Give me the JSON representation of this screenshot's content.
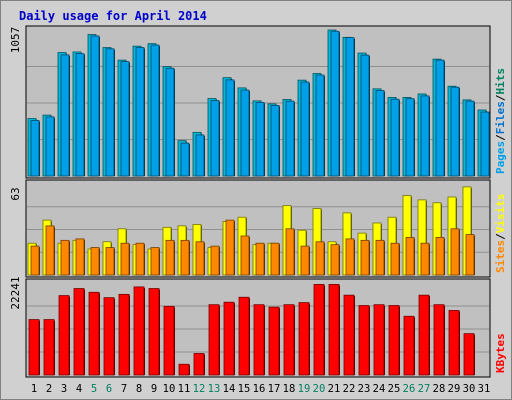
{
  "chart_data": {
    "type": "bar",
    "title": "Daily usage for April 2014",
    "categories": [
      "1",
      "2",
      "3",
      "4",
      "5",
      "6",
      "7",
      "8",
      "9",
      "10",
      "11",
      "12",
      "13",
      "14",
      "15",
      "16",
      "17",
      "18",
      "19",
      "20",
      "21",
      "22",
      "23",
      "24",
      "25",
      "26",
      "27",
      "28",
      "29",
      "30",
      "31"
    ],
    "weekend_days": [
      "5",
      "6",
      "12",
      "13",
      "19",
      "20",
      "26",
      "27"
    ],
    "colors": {
      "hits": "#00b8d8",
      "files": "#0070cc",
      "pages": "#00a0e8",
      "visits": "#ffff00",
      "sites": "#ff8800",
      "kbytes": "#ff0000",
      "weekday_label": "#000000",
      "weekend_label": "#008060",
      "plot_bg": "#c0c0c0",
      "frame_bg": "#d0d0d0"
    },
    "panels": [
      {
        "name": "pages_files_hits",
        "ymax_label": "1057",
        "ylim": [
          0,
          1057
        ],
        "legend": [
          {
            "text": "Pages",
            "color": "#00a0e8"
          },
          {
            "text": "/",
            "color": "#000000"
          },
          {
            "text": "Files",
            "color": "#0070cc"
          },
          {
            "text": "/",
            "color": "#000000"
          },
          {
            "text": "Hits",
            "color": "#008060"
          }
        ],
        "series": [
          {
            "name": "Hits",
            "values": [
              416,
              441,
              894,
              898,
              1024,
              930,
              839,
              940,
              958,
              792,
              256,
              316,
              561,
              712,
              638,
              544,
              522,
              554,
              694,
              742,
              1057,
              1004,
              890,
              631,
              569,
              569,
              594,
              846,
              650,
              551,
              478
            ]
          },
          {
            "name": "Pages",
            "values": [
              402,
              428,
              877,
              886,
              1014,
              921,
              828,
              930,
              948,
              780,
              238,
              297,
              546,
              696,
              622,
              533,
              511,
              542,
              680,
              731,
              1048,
              1002,
              875,
              619,
              556,
              560,
              580,
              839,
              643,
              542,
              463
            ]
          }
        ]
      },
      {
        "name": "visits_sites",
        "ymax_label": "63",
        "ylim": [
          0,
          63
        ],
        "legend": [
          {
            "text": "Sites",
            "color": "#ff8800"
          },
          {
            "text": "/",
            "color": "#000000"
          },
          {
            "text": "Visits",
            "color": "#ffff00"
          }
        ],
        "series": [
          {
            "name": "Visits",
            "values": [
              22,
              38,
              22,
              24,
              18,
              23,
              32,
              21,
              18,
              33,
              34,
              35,
              19,
              37,
              40,
              21,
              22,
              48,
              31,
              46,
              23,
              43,
              29,
              36,
              40,
              55,
              52,
              50,
              54,
              61,
              0
            ]
          },
          {
            "name": "Sites",
            "values": [
              20,
              34,
              24,
              25,
              19,
              19,
              22,
              22,
              19,
              24,
              24,
              23,
              20,
              38,
              27,
              22,
              22,
              32,
              20,
              23,
              21,
              25,
              24,
              24,
              22,
              26,
              22,
              26,
              32,
              28,
              0
            ]
          }
        ]
      },
      {
        "name": "kbytes",
        "ymax_label": "22241",
        "ylim": [
          0,
          22241
        ],
        "legend": [
          {
            "text": "KBytes",
            "color": "#ff0000"
          }
        ],
        "series": [
          {
            "name": "KBytes",
            "values": [
              13400,
              13400,
              19200,
              20900,
              20000,
              18700,
              19500,
              21300,
              20900,
              16600,
              2600,
              5200,
              17000,
              17600,
              18800,
              17000,
              16400,
              17000,
              17500,
              21900,
              21900,
              19300,
              16800,
              17000,
              16800,
              14200,
              19300,
              17000,
              15600,
              10000,
              0
            ]
          }
        ]
      }
    ]
  }
}
